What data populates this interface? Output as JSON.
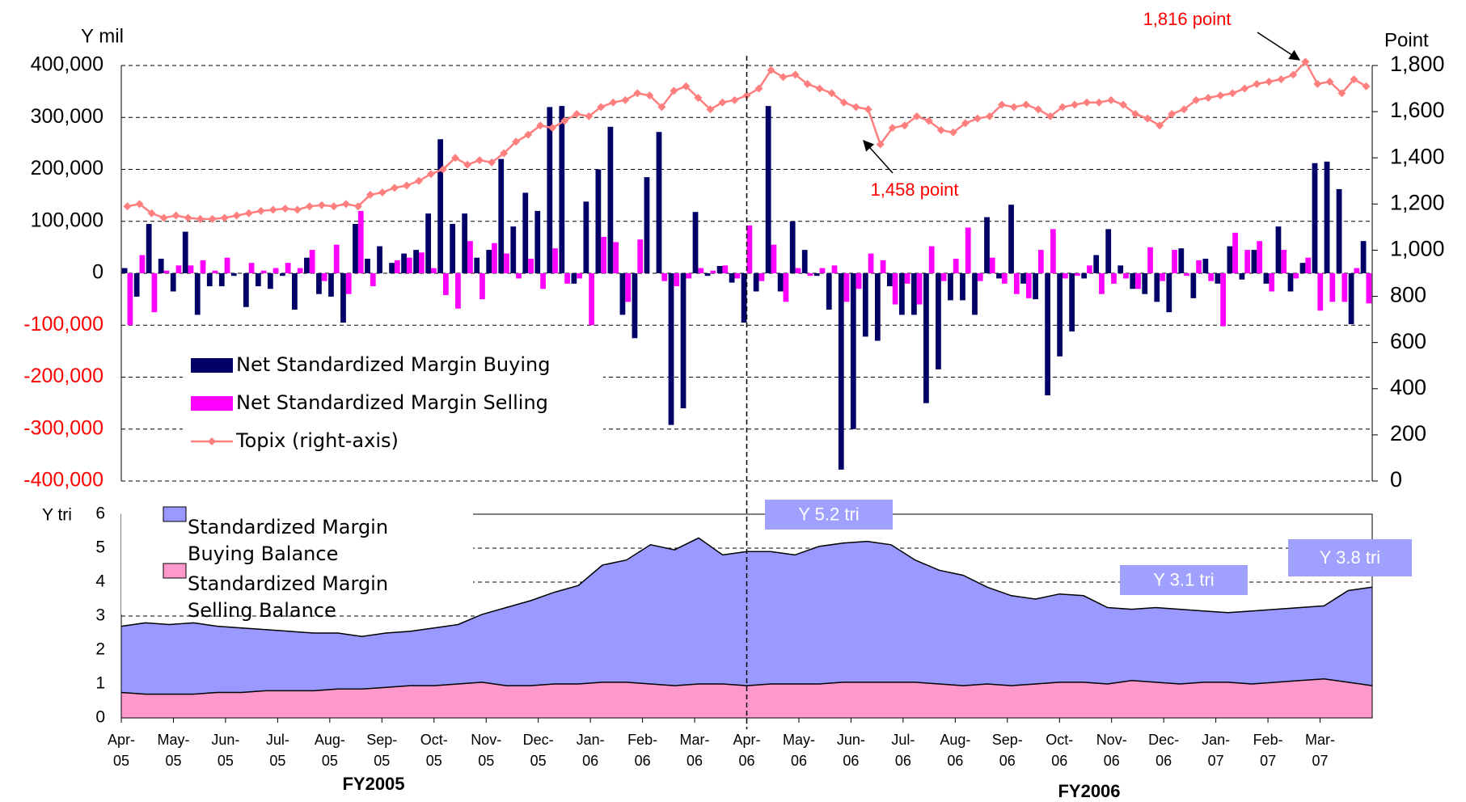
{
  "chart_data": [
    {
      "type": "bar_line",
      "y_label": "Y mil",
      "y2_label": "Point",
      "ylim": [
        -400000,
        400000
      ],
      "yticks": [
        {
          "value": -400000,
          "label": "-400,000"
        },
        {
          "value": -300000,
          "label": "-300,000"
        },
        {
          "value": -200000,
          "label": "-200,000"
        },
        {
          "value": -100000,
          "label": "-100,000"
        },
        0,
        {
          "value": 100000,
          "label": "100,000"
        },
        {
          "value": 200000,
          "label": "200,000"
        },
        {
          "value": 300000,
          "label": "300,000"
        },
        {
          "value": 400000,
          "label": "400,000"
        }
      ],
      "negative_tick_color": "#ff0000",
      "y2lim": [
        0,
        1800
      ],
      "y2ticks": [
        0,
        200,
        400,
        600,
        800,
        {
          "value": 1000,
          "label": "1,000"
        },
        {
          "value": 1200,
          "label": "1,200"
        },
        {
          "value": 1400,
          "label": "1,400"
        },
        {
          "value": 1600,
          "label": "1,600"
        },
        {
          "value": 1800,
          "label": "1,800"
        }
      ],
      "grid": true,
      "series": [
        {
          "name": "Net Standardized Margin Buying",
          "type": "bar",
          "color": "#000066",
          "values": [
            10000,
            -45000,
            95000,
            28000,
            -35000,
            80000,
            -80000,
            -25000,
            -25000,
            -5000,
            -65000,
            -25000,
            -30000,
            -5000,
            -70000,
            30000,
            -40000,
            -45000,
            -95000,
            95000,
            28000,
            52000,
            20000,
            38000,
            45000,
            115000,
            258000,
            95000,
            115000,
            30000,
            45000,
            220000,
            90000,
            155000,
            120000,
            320000,
            322000,
            -20000,
            138000,
            200000,
            282000,
            -80000,
            -125000,
            185000,
            272000,
            -292000,
            -260000,
            118000,
            -5000,
            14000,
            -18000,
            -95000,
            -35000,
            322000,
            -35000,
            100000,
            45000,
            -5000,
            -70000,
            -378000,
            -300000,
            -122000,
            -130000,
            -25000,
            -80000,
            -80000,
            -250000,
            -185000,
            -52000,
            -52000,
            -80000,
            108000,
            -10000,
            132000,
            -20000,
            -50000,
            -235000,
            -160000,
            -112000,
            -10000,
            35000,
            85000,
            15000,
            -30000,
            -40000,
            -55000,
            -75000,
            48000,
            -48000,
            28000,
            -20000,
            52000,
            -12000,
            45000,
            -20000,
            90000,
            -35000,
            20000,
            212000,
            215000,
            162000,
            -98000,
            62000
          ]
        },
        {
          "name": "Net Standardized Margin Selling",
          "type": "bar",
          "color": "#ff00ff",
          "values": [
            -100000,
            35000,
            -75000,
            5000,
            15000,
            15000,
            25000,
            5000,
            30000,
            0,
            20000,
            5000,
            10000,
            20000,
            10000,
            45000,
            -15000,
            55000,
            -40000,
            120000,
            -25000,
            0,
            25000,
            30000,
            40000,
            10000,
            -42000,
            -68000,
            62000,
            -50000,
            58000,
            38000,
            -10000,
            28000,
            -30000,
            48000,
            -20000,
            -10000,
            -100000,
            70000,
            60000,
            -55000,
            65000,
            0,
            -15000,
            -25000,
            -10000,
            10000,
            5000,
            15000,
            -10000,
            92000,
            -15000,
            55000,
            -55000,
            10000,
            -5000,
            10000,
            15000,
            -55000,
            -30000,
            38000,
            25000,
            -60000,
            -20000,
            -60000,
            52000,
            -15000,
            28000,
            88000,
            -15000,
            30000,
            -20000,
            -40000,
            -48000,
            45000,
            85000,
            -10000,
            -5000,
            15000,
            -40000,
            -20000,
            -10000,
            -30000,
            50000,
            -15000,
            45000,
            -5000,
            25000,
            -15000,
            -102000,
            78000,
            45000,
            62000,
            -35000,
            45000,
            -10000,
            30000,
            -72000,
            -55000,
            -55000,
            10000,
            -58000
          ]
        },
        {
          "name": "Topix (right-axis)",
          "type": "line",
          "axis": "y2",
          "color": "#ff7f7f",
          "values": [
            1190,
            1200,
            1160,
            1140,
            1150,
            1140,
            1135,
            1135,
            1140,
            1150,
            1160,
            1170,
            1175,
            1180,
            1175,
            1190,
            1195,
            1190,
            1200,
            1190,
            1240,
            1250,
            1270,
            1280,
            1300,
            1330,
            1350,
            1400,
            1370,
            1390,
            1380,
            1420,
            1470,
            1500,
            1540,
            1530,
            1560,
            1590,
            1580,
            1620,
            1640,
            1650,
            1680,
            1670,
            1620,
            1690,
            1710,
            1660,
            1610,
            1640,
            1650,
            1670,
            1700,
            1780,
            1750,
            1760,
            1720,
            1700,
            1680,
            1640,
            1620,
            1610,
            1458,
            1530,
            1540,
            1580,
            1560,
            1520,
            1510,
            1550,
            1570,
            1580,
            1630,
            1620,
            1630,
            1610,
            1580,
            1620,
            1630,
            1640,
            1640,
            1650,
            1630,
            1590,
            1570,
            1540,
            1590,
            1610,
            1650,
            1660,
            1670,
            1680,
            1700,
            1720,
            1730,
            1740,
            1760,
            1816,
            1720,
            1730,
            1680,
            1740,
            1710
          ]
        }
      ],
      "annotations": [
        "1,816 point",
        "1,458 point"
      ],
      "annotation_color": "#ff0000"
    },
    {
      "type": "area",
      "y_label": "Y tri",
      "ylim": [
        0,
        6
      ],
      "yticks": [
        0,
        1,
        2,
        3,
        4,
        5,
        6
      ],
      "grid": true,
      "x_labels": [
        [
          "Apr-",
          "05"
        ],
        [
          "May-",
          "05"
        ],
        [
          "Jun-",
          "05"
        ],
        [
          "Jul-",
          "05"
        ],
        [
          "Aug-",
          "05"
        ],
        [
          "Sep-",
          "05"
        ],
        [
          "Oct-",
          "05"
        ],
        [
          "Nov-",
          "05"
        ],
        [
          "Dec-",
          "05"
        ],
        [
          "Jan-",
          "06"
        ],
        [
          "Feb-",
          "06"
        ],
        [
          "Mar-",
          "06"
        ],
        [
          "Apr-",
          "06"
        ],
        [
          "May-",
          "06"
        ],
        [
          "Jun-",
          "06"
        ],
        [
          "Jul-",
          "06"
        ],
        [
          "Aug-",
          "06"
        ],
        [
          "Sep-",
          "06"
        ],
        [
          "Oct-",
          "06"
        ],
        [
          "Nov-",
          "06"
        ],
        [
          "Dec-",
          "06"
        ],
        [
          "Jan-",
          "07"
        ],
        [
          "Feb-",
          "07"
        ],
        [
          "Mar-",
          "07"
        ]
      ],
      "series": [
        {
          "name": "Standardized Margin Buying Balance",
          "color": "#9999ff",
          "values": [
            2.7,
            2.8,
            2.75,
            2.8,
            2.7,
            2.65,
            2.6,
            2.55,
            2.5,
            2.5,
            2.4,
            2.5,
            2.55,
            2.65,
            2.75,
            3.05,
            3.25,
            3.45,
            3.7,
            3.9,
            4.5,
            4.65,
            5.1,
            4.95,
            5.3,
            4.8,
            4.9,
            4.9,
            4.8,
            5.05,
            5.15,
            5.2,
            5.1,
            4.65,
            4.35,
            4.2,
            3.85,
            3.6,
            3.5,
            3.65,
            3.6,
            3.25,
            3.2,
            3.25,
            3.2,
            3.15,
            3.1,
            3.15,
            3.2,
            3.25,
            3.3,
            3.75,
            3.85
          ]
        },
        {
          "name": "Standardized Margin Selling Balance",
          "color": "#ff99cc",
          "values": [
            0.75,
            0.7,
            0.7,
            0.7,
            0.75,
            0.75,
            0.8,
            0.8,
            0.8,
            0.85,
            0.85,
            0.9,
            0.95,
            0.95,
            1.0,
            1.05,
            0.95,
            0.95,
            1.0,
            1.0,
            1.05,
            1.05,
            1.0,
            0.95,
            1.0,
            1.0,
            0.95,
            1.0,
            1.0,
            1.0,
            1.05,
            1.05,
            1.05,
            1.05,
            1.0,
            0.95,
            1.0,
            0.95,
            1.0,
            1.05,
            1.05,
            1.0,
            1.1,
            1.05,
            1.0,
            1.05,
            1.05,
            1.0,
            1.05,
            1.1,
            1.15,
            1.05,
            0.95
          ]
        }
      ],
      "annotations": [
        "Y 5.2 tri",
        "Y 3.1 tri",
        "Y 3.8 tri"
      ],
      "annotation_color": "#a0a0ff"
    }
  ],
  "fiscal_years": [
    "FY2005",
    "FY2006"
  ]
}
